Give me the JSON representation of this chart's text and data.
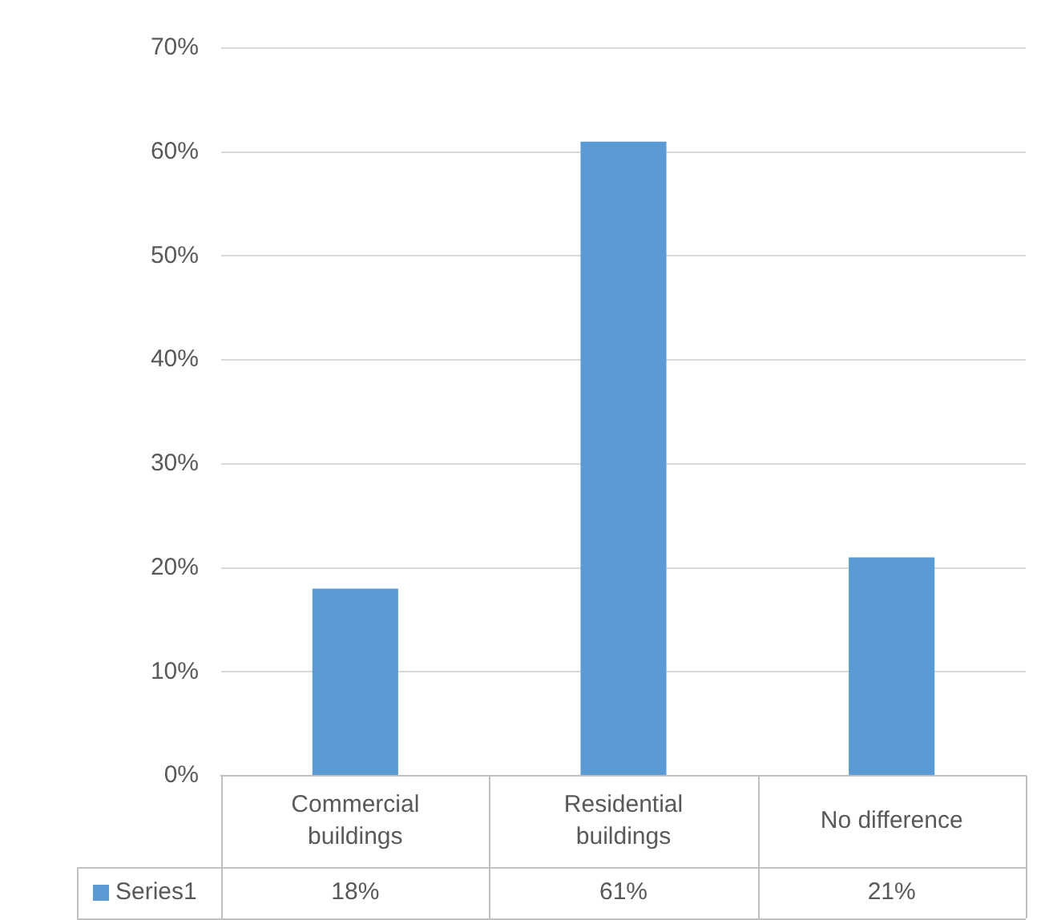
{
  "chart_data": {
    "type": "bar",
    "categories": [
      "Commercial buildings",
      "Residential buildings",
      "No difference"
    ],
    "series": [
      {
        "name": "Series1",
        "color": "#5b9bd5",
        "values": [
          18,
          61,
          21
        ]
      }
    ],
    "ylim": [
      0,
      70
    ],
    "yticks": [
      {
        "value": 0,
        "label": "0%"
      },
      {
        "value": 10,
        "label": "10%"
      },
      {
        "value": 20,
        "label": "20%"
      },
      {
        "value": 30,
        "label": "30%"
      },
      {
        "value": 40,
        "label": "40%"
      },
      {
        "value": 50,
        "label": "50%"
      },
      {
        "value": 60,
        "label": "60%"
      },
      {
        "value": 70,
        "label": "70%"
      }
    ],
    "value_labels": [
      "18%",
      "61%",
      "21%"
    ],
    "grid": "y",
    "legend": "bottom"
  }
}
